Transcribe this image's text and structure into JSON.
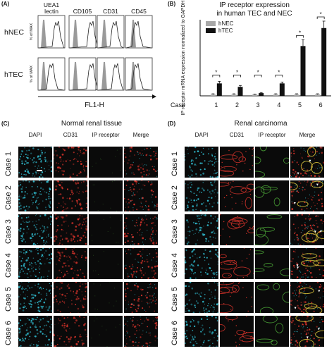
{
  "panelA": {
    "label": "(A)",
    "markers": [
      "UEA1\nlectin",
      "CD105",
      "CD31",
      "CD45"
    ],
    "rows": [
      "hNEC",
      "hTEC"
    ],
    "yaxis": "% of MAX",
    "xlabel": "FL1-H"
  },
  "panelB": {
    "label": "(B)",
    "title_line1": "IP receptor expression",
    "title_line2": "in human TEC and NEC",
    "legend": [
      "hNEC",
      "hTEC"
    ],
    "ylabel": "IP receptor mRNA expression normalized to GAPDH",
    "case_label": "Case",
    "sig": "*"
  },
  "chart_data": {
    "type": "bar",
    "title": "IP receptor expression in human TEC and NEC",
    "xlabel": "Case",
    "ylabel": "IP receptor mRNA expression normalized to GAPDH",
    "categories": [
      "1",
      "2",
      "3",
      "4",
      "5",
      "6"
    ],
    "series": [
      {
        "name": "hNEC",
        "values": [
          1,
          1,
          1,
          1,
          1,
          1
        ],
        "color": "#a8a8a8"
      },
      {
        "name": "hTEC",
        "values": [
          9,
          6.5,
          2,
          9,
          36,
          49
        ],
        "color": "#111111"
      }
    ],
    "errors": [
      [
        0.5,
        0.5,
        0.3,
        0.5,
        0.5,
        0.5
      ],
      [
        1.5,
        1.0,
        0.4,
        1.0,
        4.5,
        5.0
      ]
    ],
    "ylim": [
      0,
      55
    ],
    "grid": false,
    "legend": "top-left"
  },
  "panelC": {
    "label": "(C)",
    "title": "Normal renal tissue",
    "columns": [
      "DAPI",
      "CD31",
      "IP receptor",
      "Merge"
    ],
    "rows": [
      "Case 1",
      "Case 2",
      "Case 3",
      "Case 4",
      "Case 5",
      "Case 6"
    ]
  },
  "panelD": {
    "label": "(D)",
    "title": "Renal carcinoma",
    "columns": [
      "DAPI",
      "CD31",
      "IP receptor",
      "Merge"
    ],
    "rows": [
      "Case 1",
      "Case 2",
      "Case 3",
      "Case 4",
      "Case 5",
      "Case 6"
    ]
  },
  "colors": {
    "dapi": "#2fb6c9",
    "cd31": "#d2322a",
    "ip_receptor": "#4fae3a",
    "arrowhead": "#ffffff"
  }
}
